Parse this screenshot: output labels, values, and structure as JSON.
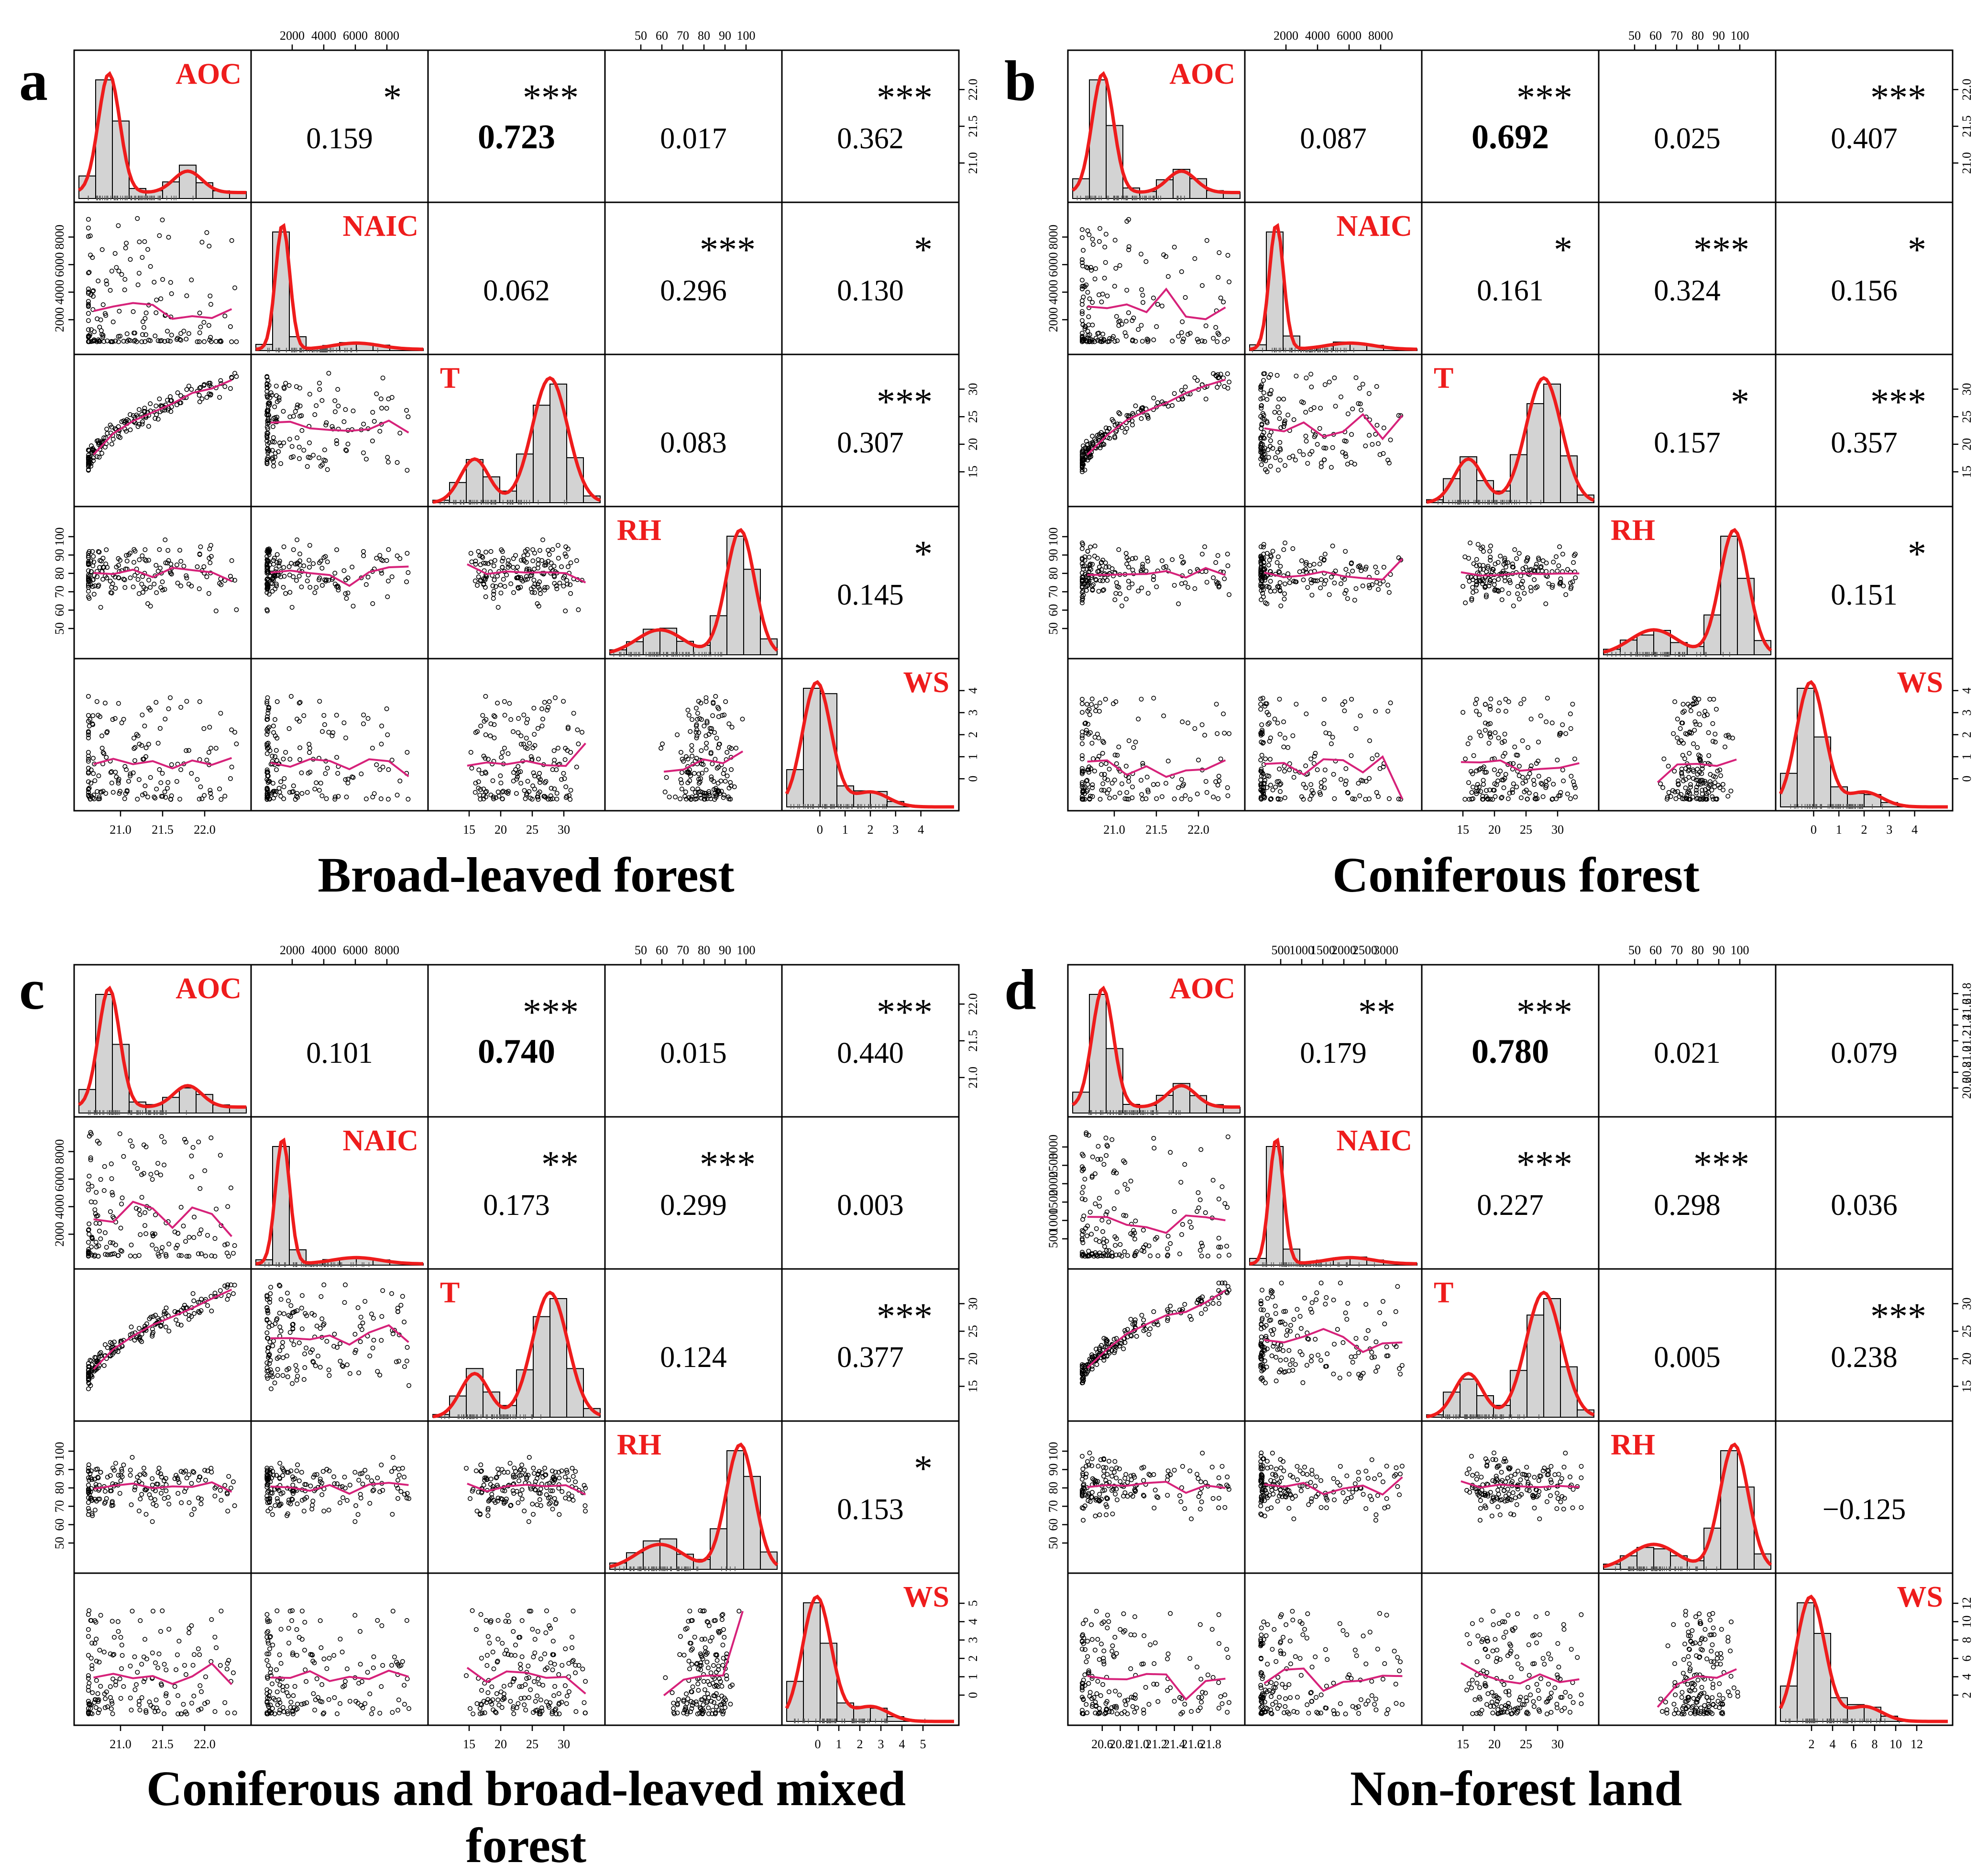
{
  "chart_data": [
    {
      "type": "scatter-matrix",
      "panel_label": "a",
      "title": "Broad-leaved forest",
      "variables": [
        "AOC",
        "NAIC",
        "T",
        "RH",
        "WS"
      ],
      "ranges": {
        "AOC": [
          20.7,
          22.3
        ],
        "NAIC": [
          200,
          9500
        ],
        "T": [
          13.5,
          32.5
        ],
        "RH": [
          43,
          100
        ],
        "WS": [
          0,
          4.9
        ]
      },
      "ticks": {
        "AOC": [
          "21.0",
          "21.5",
          "22.0"
        ],
        "NAIC": [
          "2000",
          "4000",
          "6000",
          "8000"
        ],
        "T": [
          "15",
          "20",
          "25",
          "30"
        ],
        "RH": [
          "50",
          "60",
          "70",
          "80",
          "90",
          "100"
        ],
        "WS": [
          "0",
          "1",
          "2",
          "3",
          "4"
        ]
      },
      "correlations": [
        {
          "row": 0,
          "col": 1,
          "r": "0.159",
          "sig": "*",
          "bold": false
        },
        {
          "row": 0,
          "col": 2,
          "r": "0.723",
          "sig": "***",
          "bold": true
        },
        {
          "row": 0,
          "col": 3,
          "r": "0.017",
          "sig": "",
          "bold": false
        },
        {
          "row": 0,
          "col": 4,
          "r": "0.362",
          "sig": "***",
          "bold": false
        },
        {
          "row": 1,
          "col": 2,
          "r": "0.062",
          "sig": "",
          "bold": false
        },
        {
          "row": 1,
          "col": 3,
          "r": "0.296",
          "sig": "***",
          "bold": false
        },
        {
          "row": 1,
          "col": 4,
          "r": "0.130",
          "sig": "*",
          "bold": false
        },
        {
          "row": 2,
          "col": 3,
          "r": "0.083",
          "sig": "",
          "bold": false
        },
        {
          "row": 2,
          "col": 4,
          "r": "0.307",
          "sig": "***",
          "bold": false
        },
        {
          "row": 3,
          "col": 4,
          "r": "0.145",
          "sig": "*",
          "bold": false
        }
      ]
    },
    {
      "type": "scatter-matrix",
      "panel_label": "b",
      "title": "Coniferous forest",
      "variables": [
        "AOC",
        "NAIC",
        "T",
        "RH",
        "WS"
      ],
      "ranges": {
        "AOC": [
          20.7,
          22.3
        ],
        "NAIC": [
          200,
          9500
        ],
        "T": [
          13.5,
          32.5
        ],
        "RH": [
          43,
          100
        ],
        "WS": [
          0,
          4.2
        ]
      },
      "ticks": {
        "AOC": [
          "21.0",
          "21.5",
          "22.0"
        ],
        "NAIC": [
          "2000",
          "4000",
          "6000",
          "8000"
        ],
        "T": [
          "15",
          "20",
          "25",
          "30"
        ],
        "RH": [
          "50",
          "60",
          "70",
          "80",
          "90",
          "100"
        ],
        "WS": [
          "0",
          "1",
          "2",
          "3",
          "4"
        ]
      },
      "correlations": [
        {
          "row": 0,
          "col": 1,
          "r": "0.087",
          "sig": "",
          "bold": false
        },
        {
          "row": 0,
          "col": 2,
          "r": "0.692",
          "sig": "***",
          "bold": true
        },
        {
          "row": 0,
          "col": 3,
          "r": "0.025",
          "sig": "",
          "bold": false
        },
        {
          "row": 0,
          "col": 4,
          "r": "0.407",
          "sig": "***",
          "bold": false
        },
        {
          "row": 1,
          "col": 2,
          "r": "0.161",
          "sig": "*",
          "bold": false
        },
        {
          "row": 1,
          "col": 3,
          "r": "0.324",
          "sig": "***",
          "bold": false
        },
        {
          "row": 1,
          "col": 4,
          "r": "0.156",
          "sig": "*",
          "bold": false
        },
        {
          "row": 2,
          "col": 3,
          "r": "0.157",
          "sig": "*",
          "bold": false
        },
        {
          "row": 2,
          "col": 4,
          "r": "0.357",
          "sig": "***",
          "bold": false
        },
        {
          "row": 3,
          "col": 4,
          "r": "0.151",
          "sig": "*",
          "bold": false
        }
      ]
    },
    {
      "type": "scatter-matrix",
      "panel_label": "c",
      "title": "Coniferous and broad-leaved mixed forest",
      "variables": [
        "AOC",
        "NAIC",
        "T",
        "RH",
        "WS"
      ],
      "ranges": {
        "AOC": [
          20.75,
          22.35
        ],
        "NAIC": [
          200,
          9500
        ],
        "T": [
          14.5,
          32
        ],
        "RH": [
          43,
          100
        ],
        "WS": [
          0,
          5.8
        ]
      },
      "ticks": {
        "AOC": [
          "21.0",
          "21.5",
          "22.0"
        ],
        "NAIC": [
          "2000",
          "4000",
          "6000",
          "8000"
        ],
        "T": [
          "15",
          "20",
          "25",
          "30"
        ],
        "RH": [
          "50",
          "60",
          "70",
          "80",
          "90",
          "100"
        ],
        "WS": [
          "0",
          "1",
          "2",
          "3",
          "4",
          "5"
        ]
      },
      "correlations": [
        {
          "row": 0,
          "col": 1,
          "r": "0.101",
          "sig": "",
          "bold": false
        },
        {
          "row": 0,
          "col": 2,
          "r": "0.740",
          "sig": "***",
          "bold": true
        },
        {
          "row": 0,
          "col": 3,
          "r": "0.015",
          "sig": "",
          "bold": false
        },
        {
          "row": 0,
          "col": 4,
          "r": "0.440",
          "sig": "***",
          "bold": false
        },
        {
          "row": 1,
          "col": 2,
          "r": "0.173",
          "sig": "**",
          "bold": false
        },
        {
          "row": 1,
          "col": 3,
          "r": "0.299",
          "sig": "***",
          "bold": false
        },
        {
          "row": 1,
          "col": 4,
          "r": "0.003",
          "sig": "",
          "bold": false
        },
        {
          "row": 2,
          "col": 3,
          "r": "0.124",
          "sig": "",
          "bold": false
        },
        {
          "row": 2,
          "col": 4,
          "r": "0.377",
          "sig": "***",
          "bold": false
        },
        {
          "row": 3,
          "col": 4,
          "r": "0.153",
          "sig": "*",
          "bold": false
        }
      ]
    },
    {
      "type": "scatter-matrix",
      "panel_label": "d",
      "title": "Non-forest land",
      "variables": [
        "AOC",
        "NAIC",
        "T",
        "RH",
        "WS"
      ],
      "ranges": {
        "AOC": [
          20.5,
          21.85
        ],
        "NAIC": [
          300,
          3300
        ],
        "T": [
          14,
          32
        ],
        "RH": [
          43,
          100
        ],
        "WS": [
          0,
          13
        ]
      },
      "ticks": {
        "AOC": [
          "20.6",
          "20.8",
          "21.0",
          "21.2",
          "21.4",
          "21.6",
          "21.8"
        ],
        "NAIC": [
          "500",
          "1000",
          "1500",
          "2000",
          "2500",
          "3000"
        ],
        "T": [
          "15",
          "20",
          "25",
          "30"
        ],
        "RH": [
          "50",
          "60",
          "70",
          "80",
          "90",
          "100"
        ],
        "WS": [
          "2",
          "4",
          "6",
          "8",
          "10",
          "12"
        ]
      },
      "correlations": [
        {
          "row": 0,
          "col": 1,
          "r": "0.179",
          "sig": "**",
          "bold": false
        },
        {
          "row": 0,
          "col": 2,
          "r": "0.780",
          "sig": "***",
          "bold": true
        },
        {
          "row": 0,
          "col": 3,
          "r": "0.021",
          "sig": "",
          "bold": false
        },
        {
          "row": 0,
          "col": 4,
          "r": "0.079",
          "sig": "",
          "bold": false
        },
        {
          "row": 1,
          "col": 2,
          "r": "0.227",
          "sig": "***",
          "bold": false
        },
        {
          "row": 1,
          "col": 3,
          "r": "0.298",
          "sig": "***",
          "bold": false
        },
        {
          "row": 1,
          "col": 4,
          "r": "0.036",
          "sig": "",
          "bold": false
        },
        {
          "row": 2,
          "col": 3,
          "r": "0.005",
          "sig": "",
          "bold": false
        },
        {
          "row": 2,
          "col": 4,
          "r": "0.238",
          "sig": "***",
          "bold": false
        },
        {
          "row": 3,
          "col": 4,
          "r": "−0.125",
          "sig": "",
          "bold": false
        }
      ]
    }
  ],
  "colors": {
    "density_line": "#ee1c1c",
    "loess_line": "#d6227a",
    "variable_label": "#ee1c1c",
    "bar_fill": "#d3d3d3",
    "point_stroke": "#000000",
    "frame": "#000000"
  }
}
